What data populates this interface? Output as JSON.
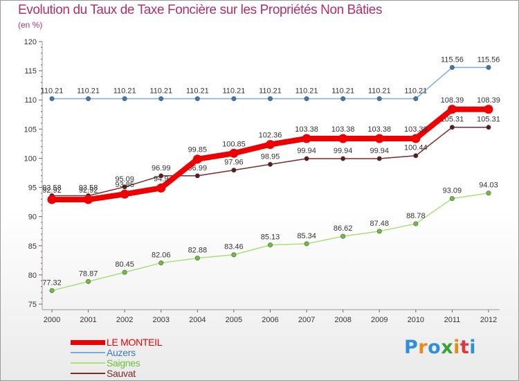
{
  "chart_data": {
    "type": "line",
    "title": "Evolution du Taux de Taxe Foncière sur les Propriétés Non Bâties",
    "subtitle": "(en %)",
    "xlabel": "",
    "ylabel": "",
    "categories": [
      "2000",
      "2001",
      "2002",
      "2003",
      "2004",
      "2005",
      "2006",
      "2007",
      "2008",
      "2009",
      "2010",
      "2011",
      "2012"
    ],
    "ylim": [
      75,
      120
    ],
    "yticks": [
      75,
      80,
      85,
      90,
      95,
      100,
      105,
      110,
      115,
      120
    ],
    "grid": false,
    "series": [
      {
        "name": "Auzers",
        "color": "#7aaad6",
        "marker": "#3c78b8",
        "values": [
          110.21,
          110.21,
          110.21,
          110.21,
          110.21,
          110.21,
          110.21,
          110.21,
          110.21,
          110.21,
          110.21,
          115.56,
          115.56
        ],
        "labels": [
          "110.21",
          "110.21",
          "110.21",
          "110.21",
          "110.21",
          "110.21",
          "110.21",
          "110.21",
          "110.21",
          "110.21",
          "110.21",
          "115.56",
          "115.56"
        ]
      },
      {
        "name": "Saignes",
        "color": "#a9e07a",
        "marker": "#6cc136",
        "values": [
          77.32,
          78.87,
          80.45,
          82.06,
          82.88,
          83.46,
          85.13,
          85.34,
          86.62,
          87.48,
          88.78,
          93.09,
          94.03
        ],
        "labels": [
          "77.32",
          "78.87",
          "80.45",
          "82.06",
          "82.88",
          "83.46",
          "85.13",
          "85.34",
          "86.62",
          "87.48",
          "88.78",
          "93.09",
          "94.03"
        ]
      },
      {
        "name": "Sauvat",
        "color": "#7a2a2a",
        "marker": "#5e1a1a",
        "values": [
          93.58,
          93.58,
          95.09,
          96.99,
          96.99,
          97.96,
          98.95,
          99.94,
          99.94,
          99.94,
          100.44,
          105.31,
          105.31
        ],
        "labels": [
          "93.58",
          "93.58",
          "95.09",
          "96.99",
          "96.99",
          "97.96",
          "98.95",
          "99.94",
          "99.94",
          "99.94",
          "100.44",
          "105.31",
          "105.31"
        ]
      },
      {
        "name": "LE MONTEIL",
        "color": "#ee0000",
        "marker": "#ee0000",
        "values": [
          92.92,
          92.92,
          93.85,
          94.9,
          99.85,
          100.85,
          102.36,
          103.38,
          103.38,
          103.38,
          103.38,
          108.39,
          108.39
        ],
        "labels": [
          "92.92",
          "92.92",
          "93.85",
          "94.9",
          "99.85",
          "100.85",
          "102.36",
          "103.38",
          "103.38",
          "103.38",
          "103.38",
          "108.39",
          "108.39"
        ]
      }
    ]
  },
  "legend": [
    {
      "label": "LE MONTEIL",
      "color": "#ee0000"
    },
    {
      "label": "Auzers",
      "color": "#7aaad6"
    },
    {
      "label": "Saignes",
      "color": "#a9e07a"
    },
    {
      "label": "Sauvat",
      "color": "#7a2a2a"
    }
  ],
  "logo": [
    "P",
    "r",
    "o",
    "x",
    "i",
    "t",
    "i"
  ]
}
